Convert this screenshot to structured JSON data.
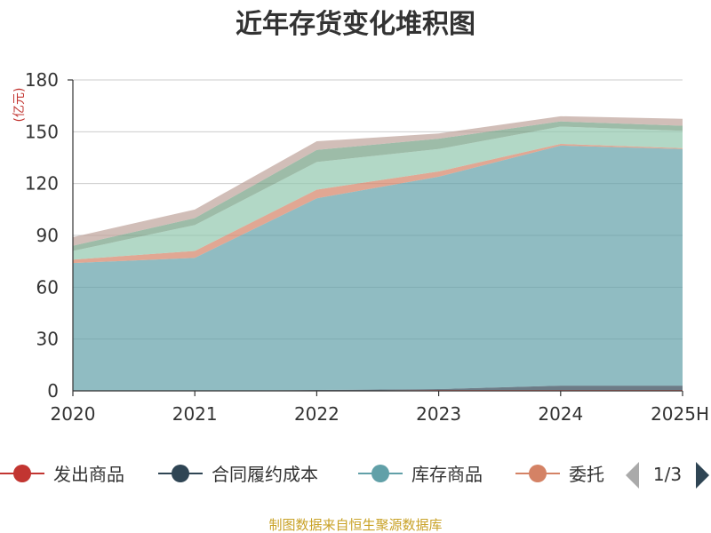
{
  "chart_data": {
    "type": "area",
    "stacked": true,
    "title": "近年存货变化堆积图",
    "unit": "(亿元)",
    "categories": [
      "2020",
      "2021",
      "2022",
      "2023",
      "2024",
      "2025H"
    ],
    "ylim": [
      0,
      180
    ],
    "yticks": [
      0,
      30,
      60,
      90,
      120,
      150,
      180
    ],
    "grid": true,
    "legend_position": "bottom",
    "legend": {
      "page": "1/3",
      "items": [
        {
          "label": "发出商品",
          "color": "#c23531",
          "icon": "circle-line-icon"
        },
        {
          "label": "合同履约成本",
          "color": "#2f4554",
          "icon": "circle-line-icon"
        },
        {
          "label": "库存商品",
          "color": "#61a0a8",
          "icon": "circle-line-icon"
        },
        {
          "label": "委托",
          "color": "#d48265",
          "icon": "circle-line-icon"
        }
      ]
    },
    "series": [
      {
        "name": "发出商品",
        "color": "#c23531",
        "values": [
          0,
          0,
          0,
          0.5,
          0.5,
          0.5
        ]
      },
      {
        "name": "合同履约成本",
        "color": "#2f4554",
        "values": [
          0,
          0,
          0.5,
          0.5,
          2.5,
          2.5
        ]
      },
      {
        "name": "库存商品",
        "color": "#61a0a8",
        "values": [
          74,
          77,
          111,
          123,
          139,
          137
        ]
      },
      {
        "name": "委托",
        "color": "#d48265",
        "values": [
          2,
          4,
          5,
          3,
          1,
          0.5
        ]
      },
      {
        "color": "#91c7ae",
        "values": [
          5,
          15,
          16,
          13,
          10,
          10
        ]
      },
      {
        "color": "#749f83",
        "values": [
          3,
          4,
          7,
          6,
          3,
          3
        ]
      },
      {
        "color": "#ca8622",
        "values": [
          0,
          0,
          0,
          0,
          0,
          0
        ]
      },
      {
        "color": "#bda29a",
        "values": [
          5,
          5,
          5,
          3,
          3,
          4
        ]
      }
    ]
  },
  "nav": {
    "prev_icon": "triangle-left-icon",
    "next_icon": "triangle-right-icon"
  },
  "source_text": "制图数据来自恒生聚源数据库",
  "colors": {
    "axis": "#333333",
    "grid": "#cccccc",
    "unit": "#c23531",
    "source": "#c9a227",
    "nav_prev": "#aaaaaa",
    "nav_next": "#2f4554"
  }
}
